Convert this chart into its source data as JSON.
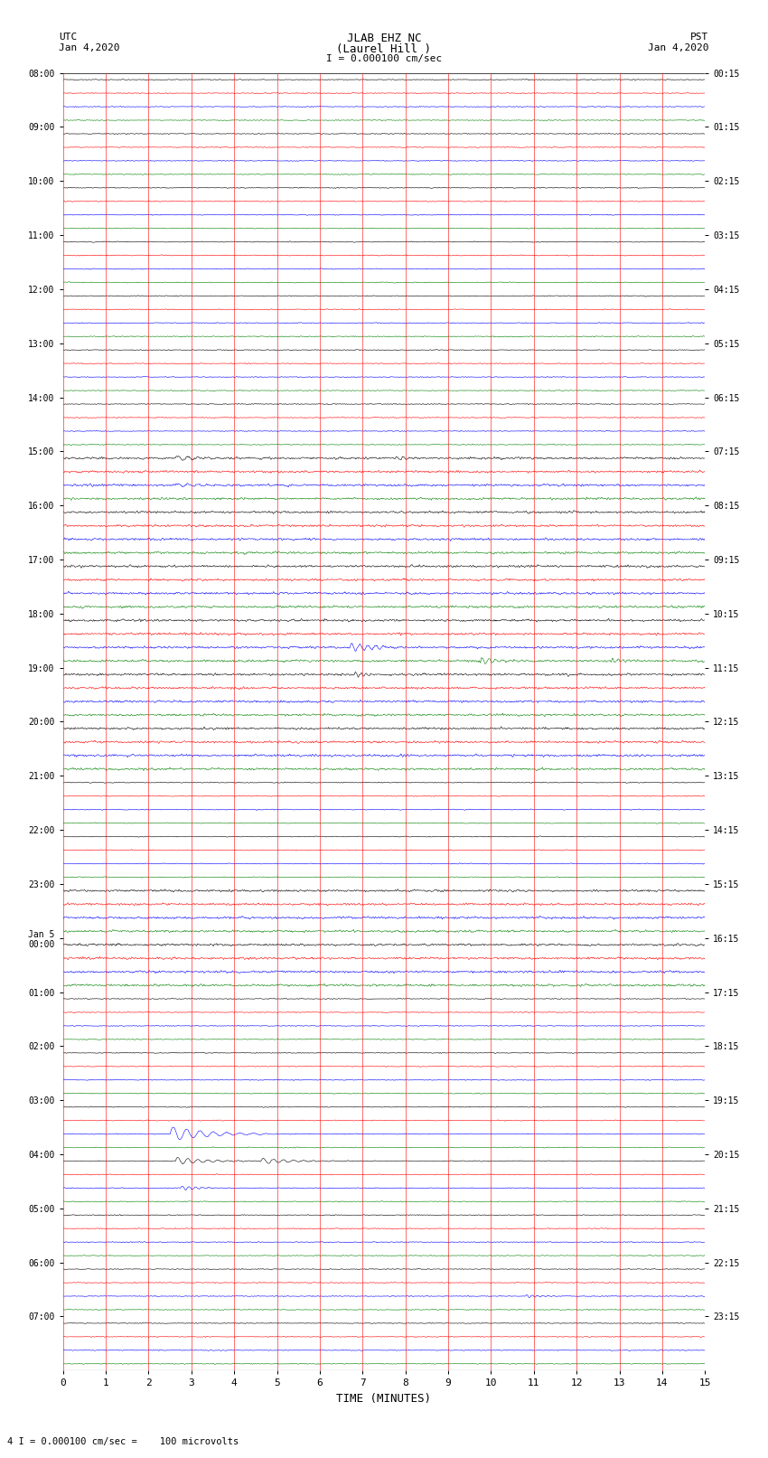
{
  "title_line1": "JLAB EHZ NC",
  "title_line2": "(Laurel Hill )",
  "scale_text": "I = 0.000100 cm/sec",
  "footer_text": "4 I = 0.000100 cm/sec =    100 microvolts",
  "utc_label": "UTC",
  "utc_date": "Jan 4,2020",
  "pst_label": "PST",
  "pst_date": "Jan 4,2020",
  "xlabel": "TIME (MINUTES)",
  "bg_color": "#ffffff",
  "trace_colors": [
    "black",
    "red",
    "blue",
    "green"
  ],
  "left_times": [
    "08:00",
    "09:00",
    "10:00",
    "11:00",
    "12:00",
    "13:00",
    "14:00",
    "15:00",
    "16:00",
    "17:00",
    "18:00",
    "19:00",
    "20:00",
    "21:00",
    "22:00",
    "23:00",
    "Jan 5\n00:00",
    "01:00",
    "02:00",
    "03:00",
    "04:00",
    "05:00",
    "06:00",
    "07:00"
  ],
  "right_times": [
    "00:15",
    "01:15",
    "02:15",
    "03:15",
    "04:15",
    "05:15",
    "06:15",
    "07:15",
    "08:15",
    "09:15",
    "10:15",
    "11:15",
    "12:15",
    "13:15",
    "14:15",
    "15:15",
    "16:15",
    "17:15",
    "18:15",
    "19:15",
    "20:15",
    "21:15",
    "22:15",
    "23:15"
  ],
  "n_hours": 24,
  "traces_per_hour": 4,
  "xmin": 0,
  "xmax": 15,
  "noise_amplitude": 0.025,
  "active_noise_amplitude": 0.06,
  "active_hours": [
    7,
    8,
    9,
    10,
    11,
    12,
    15,
    16
  ],
  "grid_color": "red",
  "grid_linewidth": 0.5,
  "font_family": "monospace",
  "vline_minutes": [
    0,
    1,
    2,
    3,
    4,
    5,
    6,
    7,
    8,
    9,
    10,
    11,
    12,
    13,
    14,
    15
  ]
}
